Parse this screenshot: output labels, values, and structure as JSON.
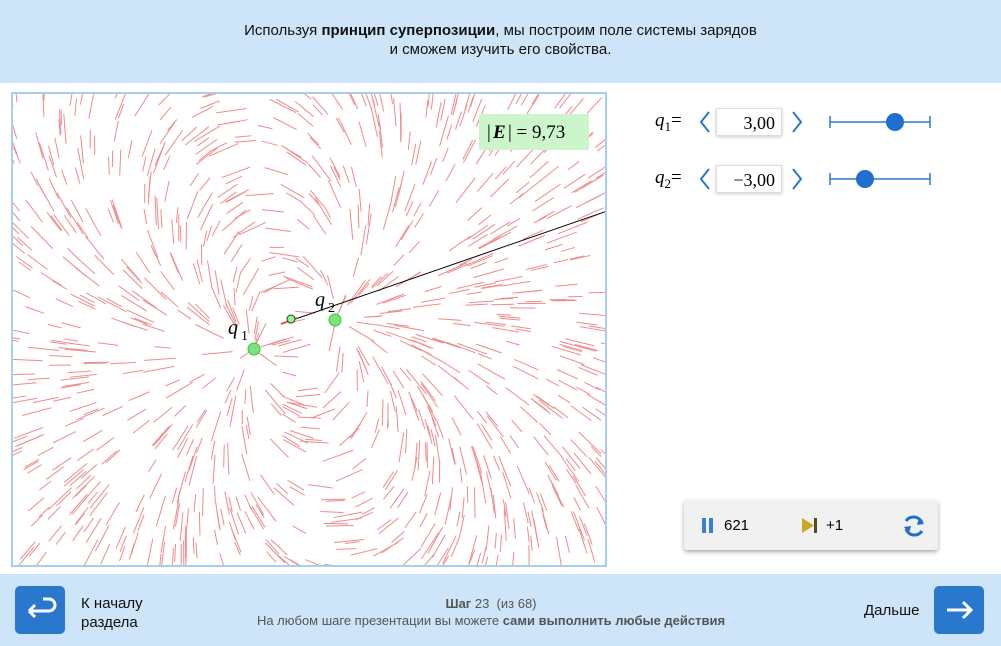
{
  "header": {
    "text_before": "Используя ",
    "text_bold": "принцип суперпозиции",
    "text_after": ", мы построим поле системы зарядов",
    "line2": "и сможем изучить его свойства."
  },
  "field": {
    "abs_open": "|",
    "symbol": "E",
    "rest": "| = 9,73"
  },
  "charges": [
    {
      "symbol": "q",
      "index": "1"
    },
    {
      "symbol": "q",
      "index": "2"
    }
  ],
  "controls": [
    {
      "symbol": "q",
      "index": "1",
      "equals": "=",
      "value": "3,00"
    },
    {
      "symbol": "q",
      "index": "2",
      "equals": "=",
      "value": "−3,00"
    }
  ],
  "player": {
    "counter": "621",
    "step": "+1"
  },
  "footer": {
    "back_lines": [
      "К началу",
      "раздела"
    ],
    "step_word": "Шаг",
    "step_number": 23,
    "step_total": "(из 68)",
    "hint_before": "На любом шаге презентации вы можете ",
    "hint_bold": "сами выполнить любые действия",
    "next": "Дальше"
  }
}
